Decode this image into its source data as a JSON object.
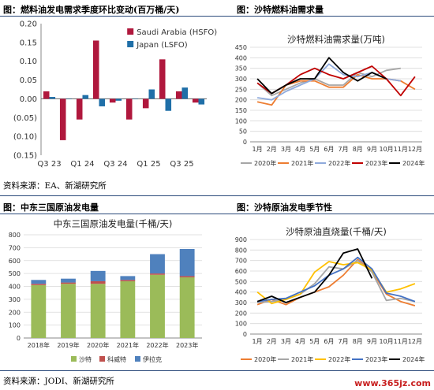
{
  "titles": {
    "c1": "图：燃料油发电需求季度环比变动(百万桶/天)",
    "c2": "图：沙特燃料油需求量",
    "c3": "图：中东三国原油发电量",
    "c4": "图：沙特原油发电季节性"
  },
  "sources": {
    "top": "资料来源：EA、新湖研究所",
    "bottom": "资料来源：JODI、新湖研究所"
  },
  "watermark": "www.365jz.com",
  "chart_data": [
    {
      "id": "qoq",
      "type": "bar",
      "title": "",
      "categories": [
        "Q3 23",
        "Q4 23",
        "Q1 24",
        "Q2 24",
        "Q3 24",
        "Q4 24",
        "Q1 25",
        "Q2 25",
        "Q3 25",
        "Q4 25"
      ],
      "tick_labels": [
        "Q3 23",
        "",
        "Q1 24",
        "",
        "Q3 24",
        "",
        "Q1 25",
        "",
        "Q3 25",
        ""
      ],
      "series": [
        {
          "name": "Saudi Arabia (HSFO)",
          "color": "#b0183d",
          "values": [
            0.02,
            -0.11,
            -0.055,
            0.155,
            -0.01,
            -0.055,
            -0.025,
            0.105,
            0.02,
            -0.01
          ]
        },
        {
          "name": "Japan (LSFO)",
          "color": "#1f6fa8",
          "values": [
            0.005,
            0.0,
            0.01,
            -0.02,
            -0.005,
            0.0,
            0.025,
            -0.032,
            0.03,
            -0.015
          ]
        }
      ],
      "ylim": [
        -0.15,
        0.2
      ],
      "yticks": [
        "0.20",
        "0.15",
        "0.10",
        "0.05",
        "0.00",
        "(0.05)",
        "(0.10)",
        "(0.15)"
      ],
      "ytick_values": [
        0.2,
        0.15,
        0.1,
        0.05,
        0.0,
        -0.05,
        -0.1,
        -0.15
      ]
    },
    {
      "id": "saudi_fo",
      "type": "line",
      "title": "沙特燃料油需求量(万吨)",
      "categories": [
        "1月",
        "2月",
        "3月",
        "4月",
        "5月",
        "6月",
        "7月",
        "8月",
        "9月",
        "10月",
        "11月",
        "12月"
      ],
      "ylim": [
        0,
        450
      ],
      "yticks": [
        0,
        50,
        100,
        150,
        200,
        250,
        300,
        350,
        400,
        450
      ],
      "series": [
        {
          "name": "2020年",
          "color": "#a6a6a6",
          "values": [
            280,
            220,
            250,
            280,
            300,
            270,
            270,
            330,
            310,
            340,
            350,
            null
          ]
        },
        {
          "name": "2021年",
          "color": "#ed7d31",
          "values": [
            190,
            175,
            270,
            290,
            290,
            260,
            260,
            320,
            300,
            300,
            290,
            250
          ]
        },
        {
          "name": "2022年",
          "color": "#8faadc",
          "values": [
            210,
            200,
            240,
            270,
            300,
            370,
            320,
            310,
            330,
            300,
            290,
            null
          ]
        },
        {
          "name": "2023年",
          "color": "#c00000",
          "values": [
            280,
            230,
            270,
            320,
            350,
            320,
            300,
            330,
            360,
            300,
            220,
            310
          ]
        },
        {
          "name": "2024年",
          "color": "#000000",
          "values": [
            300,
            230,
            270,
            300,
            300,
            400,
            330,
            290,
            330,
            300,
            null,
            null
          ]
        }
      ]
    },
    {
      "id": "me3",
      "type": "bar",
      "stacked": true,
      "title": "中东三国原油发电量(千桶/天)",
      "categories": [
        "2018年",
        "2019年",
        "2020年",
        "2021年",
        "2022年",
        "2023年"
      ],
      "ylim": [
        0,
        800
      ],
      "yticks": [
        0,
        100,
        200,
        300,
        400,
        500,
        600,
        700,
        800
      ],
      "series": [
        {
          "name": "沙特",
          "color": "#9bbb59",
          "values": [
            410,
            420,
            420,
            440,
            490,
            470
          ]
        },
        {
          "name": "科威特",
          "color": "#c0504d",
          "values": [
            10,
            10,
            20,
            10,
            10,
            10
          ]
        },
        {
          "name": "伊拉克",
          "color": "#4f81bd",
          "values": [
            30,
            30,
            80,
            30,
            150,
            210
          ]
        }
      ]
    },
    {
      "id": "seasonal",
      "type": "line",
      "title": "沙特原油直烧量(千桶/天)",
      "categories": [
        "1月",
        "2月",
        "3月",
        "4月",
        "5月",
        "6月",
        "7月",
        "8月",
        "9月",
        "10月",
        "11月",
        "12月"
      ],
      "ylim": [
        0,
        900
      ],
      "yticks": [
        0,
        100,
        200,
        300,
        400,
        500,
        600,
        700,
        800,
        900
      ],
      "series": [
        {
          "name": "2020年",
          "color": "#ed7d31",
          "values": [
            280,
            330,
            280,
            350,
            400,
            450,
            560,
            710,
            600,
            380,
            310,
            270
          ]
        },
        {
          "name": "2021年",
          "color": "#a6a6a6",
          "values": [
            300,
            310,
            330,
            380,
            480,
            640,
            620,
            700,
            590,
            320,
            340,
            310
          ]
        },
        {
          "name": "2022年",
          "color": "#ffc000",
          "values": [
            400,
            290,
            330,
            380,
            590,
            690,
            660,
            680,
            610,
            400,
            430,
            480
          ]
        },
        {
          "name": "2023年",
          "color": "#4472c4",
          "values": [
            310,
            330,
            340,
            400,
            460,
            560,
            620,
            730,
            620,
            390,
            360,
            310
          ]
        },
        {
          "name": "2024年",
          "color": "#000000",
          "values": [
            310,
            360,
            300,
            350,
            400,
            560,
            770,
            810,
            530,
            null,
            null,
            null
          ]
        }
      ]
    }
  ]
}
